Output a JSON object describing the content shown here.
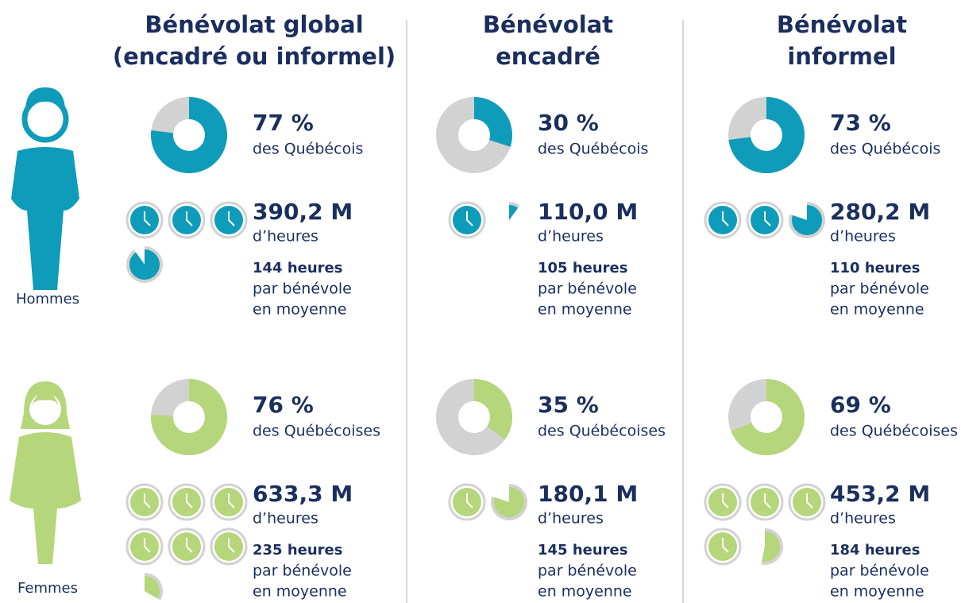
{
  "columns": [
    {
      "title": [
        "Bénévolat global",
        "(encadré ou informel)"
      ],
      "groups": [
        {
          "percent": {
            "value": 77,
            "label": "77 %"
          },
          "percent_text": "des Québécois",
          "hours": {
            "value": 390.2,
            "label": "390,2 M"
          },
          "hours_text": "d’heures",
          "avg": "144 heures",
          "avg_text": [
            "par bénévole",
            "en moyenne"
          ]
        },
        {
          "percent": {
            "value": 76,
            "label": "76 %"
          },
          "percent_text": "des Québécoises",
          "hours": {
            "value": 633.3,
            "label": "633,3 M"
          },
          "hours_text": "d’heures",
          "avg": "235 heures",
          "avg_text": [
            "par bénévole",
            "en moyenne"
          ]
        }
      ]
    },
    {
      "title": [
        "Bénévolat",
        "encadré"
      ],
      "groups": [
        {
          "percent": {
            "value": 30,
            "label": "30 %"
          },
          "percent_text": "des Québécois",
          "hours": {
            "value": 110.0,
            "label": "110,0 M"
          },
          "hours_text": "d’heures",
          "avg": "105 heures",
          "avg_text": [
            "par bénévole",
            "en moyenne"
          ]
        },
        {
          "percent": {
            "value": 35,
            "label": "35 %"
          },
          "percent_text": "des Québécoises",
          "hours": {
            "value": 180.1,
            "label": "180,1 M"
          },
          "hours_text": "d’heures",
          "avg": "145 heures",
          "avg_text": [
            "par bénévole",
            "en moyenne"
          ]
        }
      ]
    },
    {
      "title": [
        "Bénévolat",
        "informel"
      ],
      "groups": [
        {
          "percent": {
            "value": 73,
            "label": "73 %"
          },
          "percent_text": "des Québécois",
          "hours": {
            "value": 280.2,
            "label": "280,2 M"
          },
          "hours_text": "d’heures",
          "avg": "110 heures",
          "avg_text": [
            "par bénévole",
            "en moyenne"
          ]
        },
        {
          "percent": {
            "value": 69,
            "label": "69 %"
          },
          "percent_text": "des Québécoises",
          "hours": {
            "value": 453.2,
            "label": "453,2 M"
          },
          "hours_text": "d’heures",
          "avg": "184 heures",
          "avg_text": [
            "par bénévole",
            "en moyenne"
          ]
        }
      ]
    }
  ],
  "groups": [
    {
      "label": "Hommes",
      "color": "#0e9cba"
    },
    {
      "label": "Femmes",
      "color": "#b5d67a"
    }
  ],
  "rest_color": "#d2d2d2"
}
